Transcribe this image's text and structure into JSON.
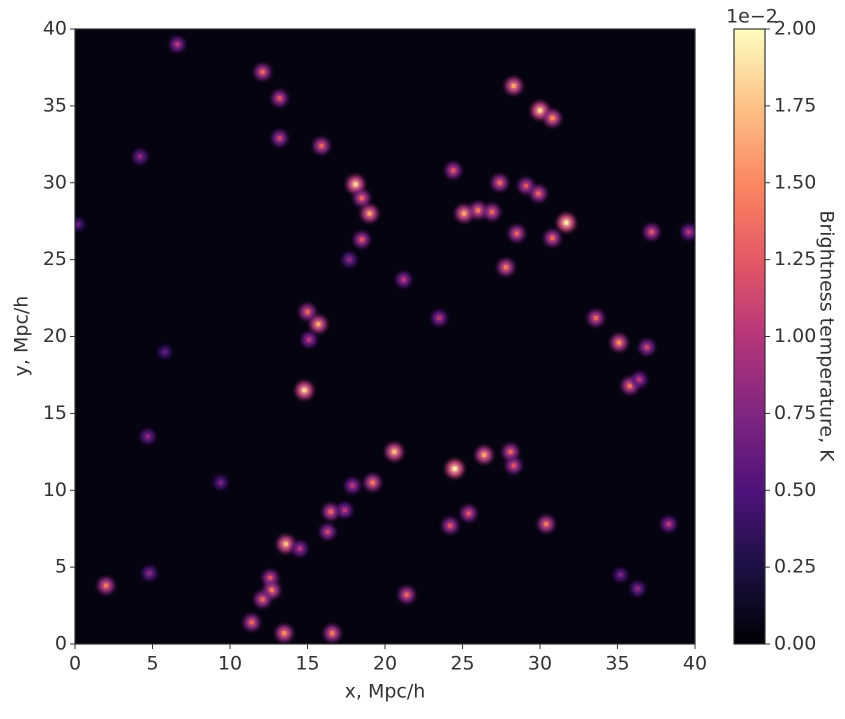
{
  "chart_data": {
    "type": "heatmap",
    "xlabel": "x, Mpc/h",
    "ylabel": "y, Mpc/h",
    "colorbar_label": "Brightness temperature, K",
    "colorbar_offset": "1e−2",
    "colormap": "magma",
    "xlim": [
      0,
      40
    ],
    "ylim": [
      0,
      40
    ],
    "xticks": [
      0,
      5,
      10,
      15,
      20,
      25,
      30,
      35,
      40
    ],
    "yticks": [
      0,
      5,
      10,
      15,
      20,
      25,
      30,
      35,
      40
    ],
    "clim": [
      0,
      2
    ],
    "cticks": [
      {
        "value": 0,
        "label": "0.00"
      },
      {
        "value": 0.25,
        "label": "0.25"
      },
      {
        "value": 0.5,
        "label": "0.50"
      },
      {
        "value": 0.75,
        "label": "0.75"
      },
      {
        "value": 1,
        "label": "1.00"
      },
      {
        "value": 1.25,
        "label": "1.25"
      },
      {
        "value": 1.5,
        "label": "1.50"
      },
      {
        "value": 1.75,
        "label": "1.75"
      },
      {
        "value": 2,
        "label": "2.00"
      }
    ],
    "x": [
      6.6,
      12.1,
      13.2,
      30.0,
      30.8,
      28.3,
      15.9,
      18.1,
      18.5,
      24.4,
      27.4,
      29.1,
      29.9,
      31.7,
      26.0,
      26.9,
      25.1,
      28.5,
      30.8,
      37.2,
      39.6,
      19.0,
      18.5,
      17.7,
      27.8,
      21.2,
      15.0,
      15.7,
      15.1,
      23.5,
      33.6,
      35.1,
      36.9,
      35.8,
      36.4,
      14.8,
      5.8,
      4.7,
      20.6,
      26.4,
      28.1,
      28.3,
      24.5,
      9.4,
      19.2,
      17.9,
      16.5,
      17.4,
      25.4,
      24.2,
      30.4,
      38.3,
      16.3,
      13.6,
      14.5,
      2.0,
      12.6,
      12.7,
      12.1,
      11.4,
      13.5,
      16.6,
      21.4,
      4.8,
      35.2,
      36.3,
      0.2,
      4.2,
      13.2
    ],
    "y": [
      39.0,
      37.2,
      35.5,
      34.7,
      34.2,
      36.3,
      32.4,
      29.9,
      29.0,
      30.8,
      30.0,
      29.8,
      29.3,
      27.4,
      28.2,
      28.1,
      28.0,
      26.7,
      26.4,
      26.8,
      26.8,
      28.0,
      26.3,
      25.0,
      24.5,
      23.7,
      21.6,
      20.8,
      19.8,
      21.2,
      21.2,
      19.6,
      19.3,
      16.8,
      17.2,
      16.5,
      19.0,
      13.5,
      12.5,
      12.3,
      12.5,
      11.6,
      11.4,
      10.5,
      10.5,
      10.3,
      8.6,
      8.7,
      8.5,
      7.7,
      7.8,
      7.8,
      7.3,
      6.5,
      6.2,
      3.8,
      4.3,
      3.5,
      2.9,
      1.4,
      0.7,
      0.7,
      3.2,
      4.6,
      4.5,
      3.6,
      27.3,
      31.7,
      32.9
    ],
    "values": [
      1.0,
      1.3,
      1.2,
      1.8,
      1.5,
      1.6,
      1.3,
      1.8,
      1.3,
      1.2,
      1.3,
      1.2,
      1.3,
      1.9,
      1.4,
      1.3,
      1.6,
      1.3,
      1.3,
      1.2,
      1.0,
      1.6,
      1.2,
      0.8,
      1.4,
      1.0,
      1.3,
      1.6,
      1.0,
      1.0,
      1.3,
      1.5,
      1.1,
      1.4,
      1.0,
      1.8,
      0.6,
      0.8,
      1.7,
      1.6,
      1.3,
      1.2,
      1.9,
      0.7,
      1.4,
      1.0,
      1.3,
      1.0,
      1.2,
      1.2,
      1.4,
      1.0,
      1.1,
      1.7,
      1.0,
      1.4,
      1.2,
      1.4,
      1.3,
      1.3,
      1.5,
      1.4,
      1.3,
      0.8,
      0.7,
      0.8,
      0.6,
      0.8,
      1.1
    ]
  }
}
